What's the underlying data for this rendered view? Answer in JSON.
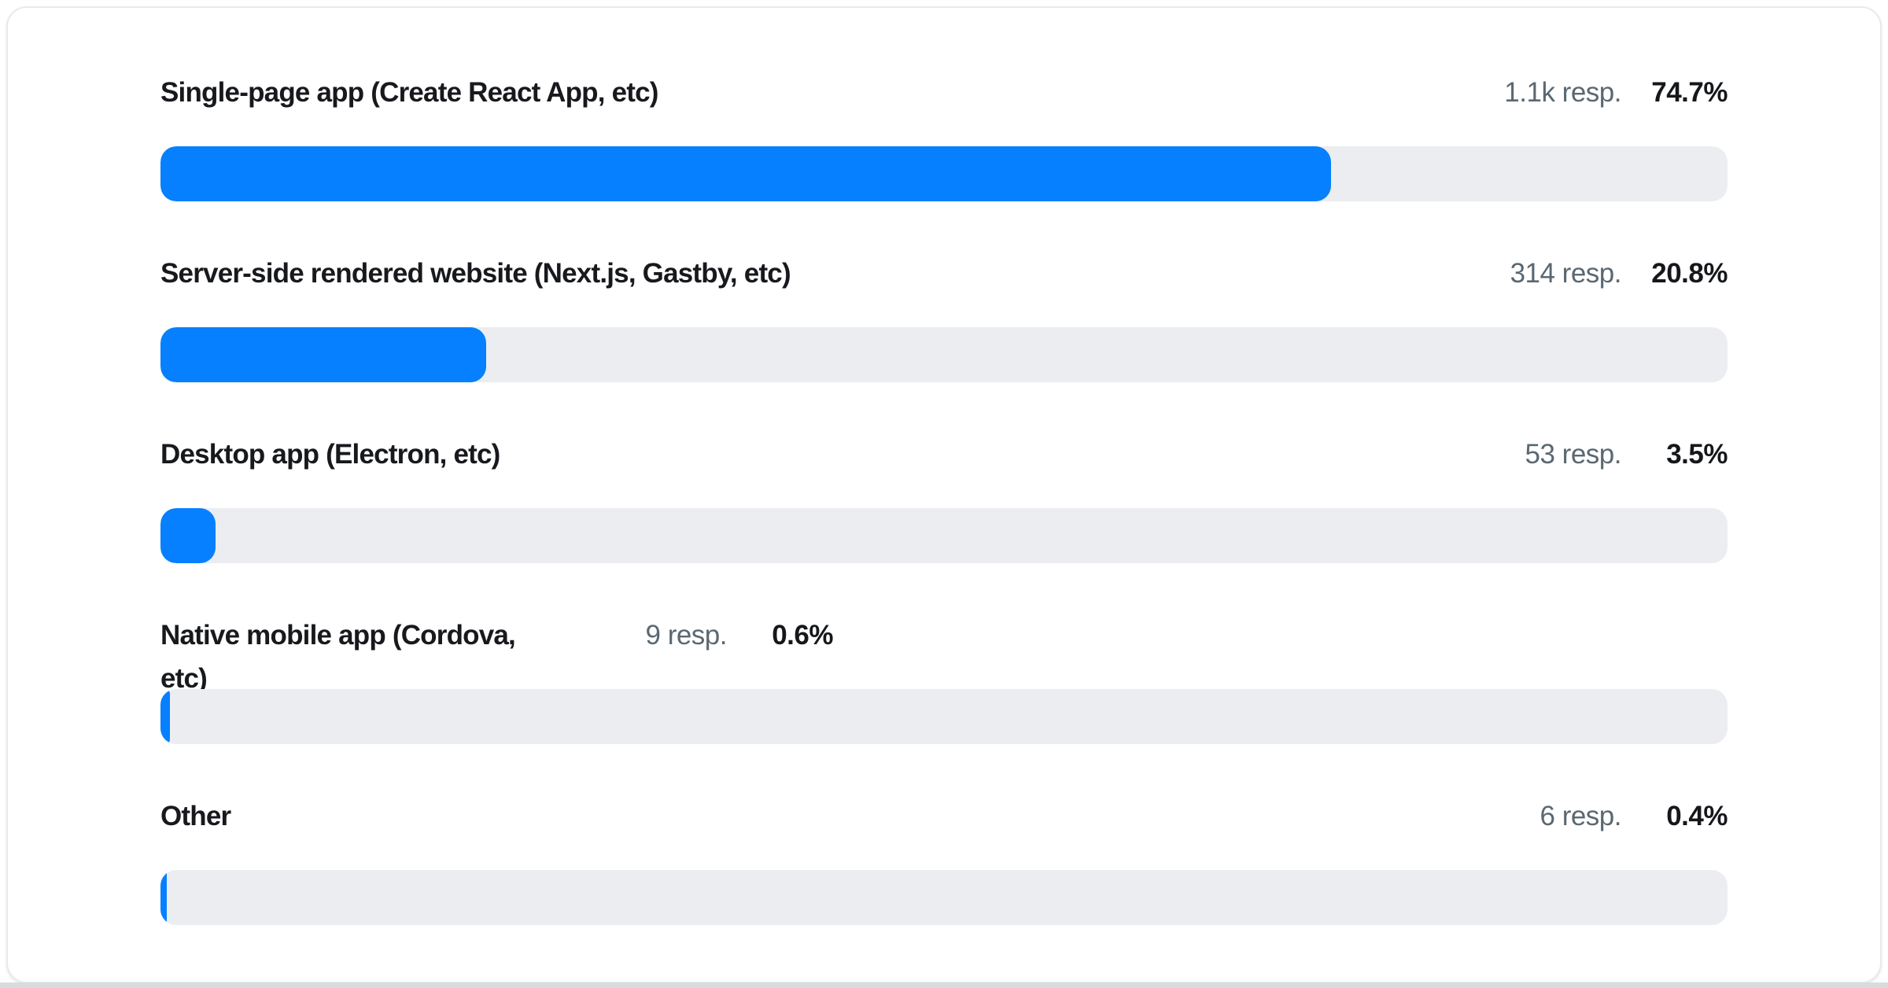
{
  "chart_data": {
    "type": "bar",
    "orientation": "horizontal",
    "unit": "%",
    "xlim": [
      0,
      100
    ],
    "grid": false,
    "legend": false,
    "categories": [
      "Single-page app (Create React App, etc)",
      "Server-side rendered website (Next.js, Gastby, etc)",
      "Desktop app (Electron, etc)",
      "Native mobile app (Cordova, etc)",
      "Other"
    ],
    "values": [
      74.7,
      20.8,
      3.5,
      0.6,
      0.4
    ],
    "response_counts_display": [
      "1.1k",
      "314",
      "53",
      "9",
      "6"
    ]
  },
  "rows": [
    {
      "label": "Single-page app (Create React App, etc)",
      "responses": "1.1k resp.",
      "percent": "74.7%",
      "percent_value": 74.7
    },
    {
      "label": "Server-side rendered website (Next.js, Gastby, etc)",
      "responses": "314 resp.",
      "percent": "20.8%",
      "percent_value": 20.8
    },
    {
      "label": "Desktop app (Electron, etc)",
      "responses": "53 resp.",
      "percent": "3.5%",
      "percent_value": 3.5
    },
    {
      "label": "Native mobile app (Cordova, etc)",
      "responses": "9 resp.",
      "percent": "0.6%",
      "percent_value": 0.6
    },
    {
      "label": "Other",
      "responses": "6 resp.",
      "percent": "0.4%",
      "percent_value": 0.4
    }
  ],
  "colors": {
    "bar_fill": "#0680ff",
    "bar_track": "#ebedf1",
    "label_text": "#17191d",
    "responses_text": "#5a6872",
    "percent_text": "#15171a",
    "card_background": "#ffffff",
    "card_border": "#e7eaed",
    "page_bottom_strip": "#d8dcdf"
  }
}
